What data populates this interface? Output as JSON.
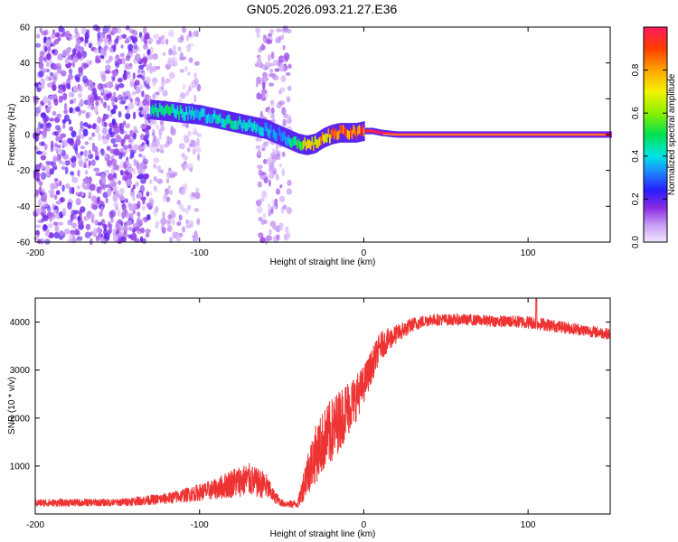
{
  "title": "GN05.2026.093.21.27.E36",
  "chart_data": [
    {
      "type": "heatmap",
      "xlabel": "Height of straight line (km)",
      "ylabel": "Frequency (Hz)",
      "xlim": [
        -200,
        150
      ],
      "ylim": [
        -60,
        60
      ],
      "xticks": [
        -200,
        -100,
        0,
        100
      ],
      "yticks": [
        -60,
        -40,
        -20,
        0,
        20,
        40,
        60
      ],
      "colorbar": {
        "label": "Normalized spectral amplitude",
        "range": [
          0,
          1
        ],
        "ticks": [
          0.0,
          0.2,
          0.4,
          0.6,
          0.8
        ]
      },
      "ridge": {
        "description": "dominant frequency vs height",
        "x": [
          -130,
          -120,
          -110,
          -100,
          -90,
          -80,
          -70,
          -60,
          -55,
          -50,
          -45,
          -40,
          -35,
          -30,
          -25,
          -20,
          -15,
          -10,
          -5,
          0,
          5,
          10,
          20,
          50,
          100,
          150
        ],
        "y": [
          14,
          13,
          12,
          11,
          9,
          7,
          5,
          3,
          1,
          -1,
          -3,
          -5,
          -6,
          -5,
          -2,
          0,
          1,
          1,
          1,
          2,
          2,
          1,
          0,
          0,
          0,
          0
        ],
        "amplitude": [
          0.45,
          0.5,
          0.45,
          0.4,
          0.42,
          0.45,
          0.42,
          0.38,
          0.35,
          0.3,
          0.45,
          0.6,
          0.7,
          0.75,
          0.8,
          0.85,
          0.9,
          0.9,
          0.92,
          0.95,
          0.98,
          1.0,
          1.0,
          1.0,
          1.0,
          1.0
        ]
      },
      "noise_regions": [
        {
          "x_range": [
            -200,
            -130
          ],
          "level": 0.15
        },
        {
          "x_range": [
            -130,
            -100
          ],
          "level": 0.08
        },
        {
          "x_range": [
            -65,
            -45
          ],
          "level": 0.1
        }
      ]
    },
    {
      "type": "line",
      "xlabel": "Height of straight line (km)",
      "ylabel": "SNR (10 * v/v)",
      "xlim": [
        -200,
        150
      ],
      "ylim": [
        0,
        4500
      ],
      "xticks": [
        -200,
        -100,
        0,
        100
      ],
      "yticks": [
        1000,
        2000,
        3000,
        4000
      ],
      "color": "#ee3333",
      "envelope": {
        "x": [
          -200,
          -150,
          -120,
          -100,
          -90,
          -80,
          -70,
          -65,
          -60,
          -55,
          -50,
          -45,
          -40,
          -35,
          -30,
          -25,
          -20,
          -15,
          -10,
          -5,
          0,
          5,
          10,
          20,
          30,
          40,
          60,
          80,
          100,
          120,
          150
        ],
        "mean": [
          230,
          240,
          320,
          450,
          520,
          650,
          720,
          650,
          600,
          380,
          230,
          200,
          220,
          800,
          1200,
          1500,
          1700,
          1950,
          2200,
          2400,
          2700,
          3100,
          3500,
          3750,
          3950,
          4050,
          4050,
          4020,
          4000,
          3900,
          3750
        ],
        "spread": [
          80,
          80,
          120,
          180,
          220,
          320,
          350,
          300,
          300,
          150,
          80,
          80,
          100,
          450,
          600,
          650,
          700,
          650,
          600,
          500,
          400,
          350,
          300,
          200,
          150,
          130,
          120,
          120,
          140,
          130,
          120
        ]
      }
    }
  ]
}
